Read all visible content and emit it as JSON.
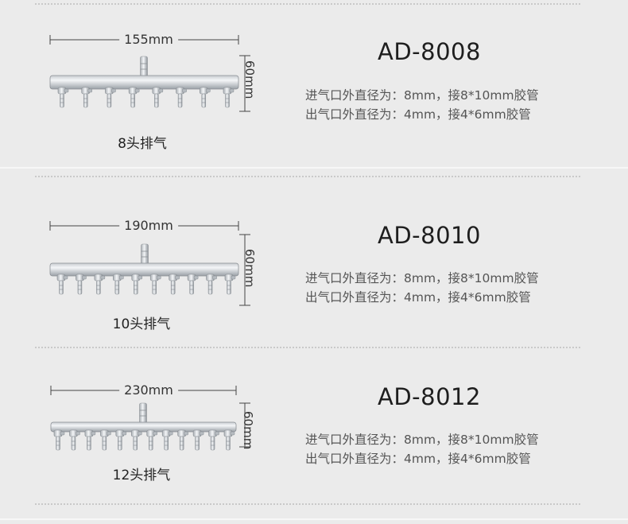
{
  "products": [
    {
      "model": "AD-8008",
      "width_label": "155mm",
      "height_label": "60mm",
      "heads_label": "8头排气",
      "outlets": 8,
      "spec_in": "进气口外直径为：8mm，接8*10mm胶管",
      "spec_out": "出气口外直径为：4mm，接4*6mm胶管"
    },
    {
      "model": "AD-8010",
      "width_label": "190mm",
      "height_label": "60mm",
      "heads_label": "10头排气",
      "outlets": 10,
      "spec_in": "进气口外直径为：8mm，接8*10mm胶管",
      "spec_out": "出气口外直径为：4mm，接4*6mm胶管"
    },
    {
      "model": "AD-8012",
      "width_label": "230mm",
      "height_label": "60mm",
      "heads_label": "12头排气",
      "outlets": 12,
      "spec_in": "进气口外直径为：8mm，接8*10mm胶管",
      "spec_out": "出气口外直径为：4mm，接4*6mm胶管"
    }
  ],
  "colors": {
    "background": "#ebebeb",
    "metal_light": "#f4f6f8",
    "metal_dark": "#9aa0a6"
  }
}
